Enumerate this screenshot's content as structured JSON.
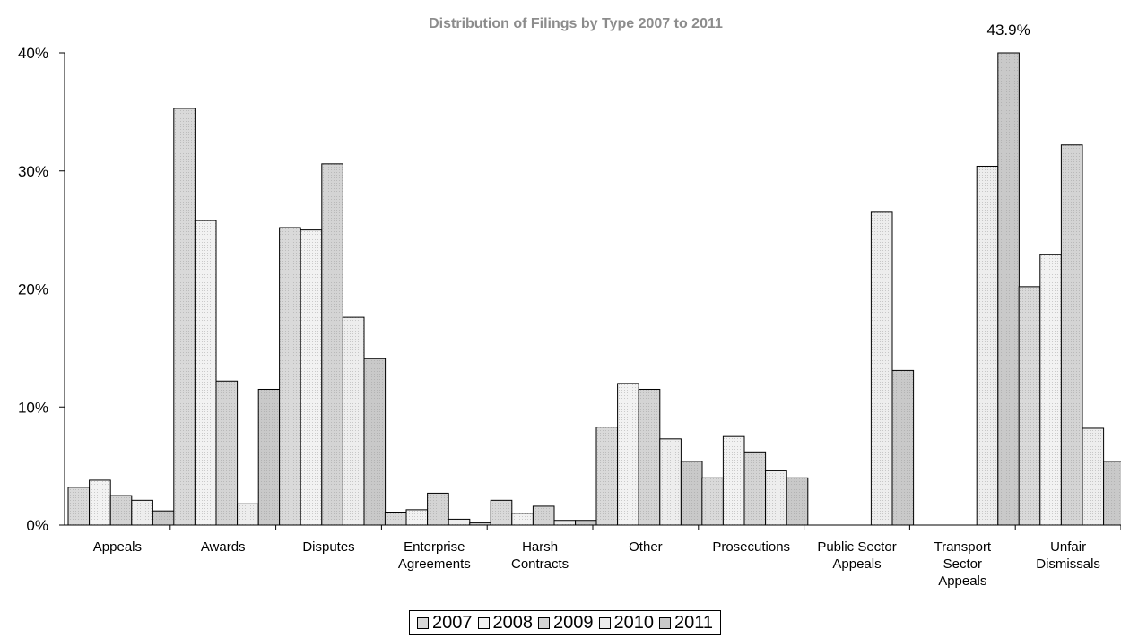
{
  "chart_data": {
    "type": "bar",
    "title": "Distribution of Filings by Type 2007 to 2011",
    "ylim": [
      0,
      40
    ],
    "yticks": [
      "0%",
      "10%",
      "20%",
      "30%",
      "40%"
    ],
    "categories": [
      "Appeals",
      "Awards",
      "Disputes",
      "Enterprise Agreements",
      "Harsh Contracts",
      "Other",
      "Prosecutions",
      "Public Sector Appeals",
      "Transport Sector Appeals",
      "Unfair Dismissals"
    ],
    "series": [
      {
        "name": "2007",
        "color": "#d9d9d9",
        "values": [
          3.2,
          35.3,
          25.2,
          1.1,
          2.1,
          8.3,
          4.0,
          0,
          0,
          20.2
        ]
      },
      {
        "name": "2008",
        "color": "#f2f2f2",
        "values": [
          3.8,
          25.8,
          25.0,
          1.3,
          1.0,
          12.0,
          7.5,
          0,
          0,
          22.9
        ]
      },
      {
        "name": "2009",
        "color": "#d4d4d4",
        "values": [
          2.5,
          12.2,
          30.6,
          2.7,
          1.6,
          11.5,
          6.2,
          0,
          0,
          32.2
        ]
      },
      {
        "name": "2010",
        "color": "#ededed",
        "values": [
          2.1,
          1.8,
          17.6,
          0.5,
          0.4,
          7.3,
          4.6,
          26.5,
          30.4,
          8.2
        ]
      },
      {
        "name": "2011",
        "color": "#c9c9c9",
        "values": [
          1.2,
          11.5,
          14.1,
          0.2,
          0.4,
          5.4,
          4.0,
          13.1,
          43.9,
          5.4
        ]
      }
    ],
    "annotations": [
      {
        "text": "43.9%",
        "category": "Transport Sector Appeals",
        "series": "2011"
      }
    ],
    "legend_position": "bottom",
    "grid": false
  }
}
